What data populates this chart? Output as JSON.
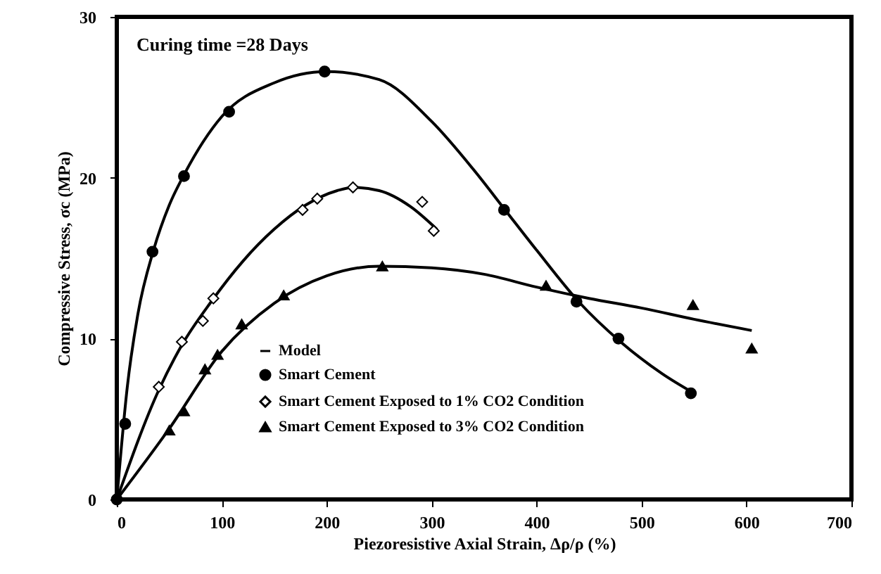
{
  "chart_data": {
    "type": "scatter",
    "xlabel": "Piezoresistive Axial Strain, Δρ/ρ (%)",
    "ylabel": "Compressive Stress, σc (MPa)",
    "annotations": [
      "Curing time =28 Days"
    ],
    "xlim": [
      0,
      700
    ],
    "xticks": [
      0,
      100,
      200,
      300,
      400,
      500,
      600,
      700
    ],
    "ylim": [
      0,
      30
    ],
    "yticks": [
      0,
      10,
      20,
      30
    ],
    "grid": false,
    "legend": "bottom",
    "series": [
      {
        "name": "Model",
        "type": "line",
        "color": "#000000",
        "line_style": "solid",
        "x": [
          0,
          10,
          20,
          35,
          50,
          65,
          100,
          150,
          200,
          250,
          300,
          340,
          370,
          400,
          440,
          480,
          520,
          550
        ],
        "values": [
          0,
          7,
          11.5,
          15.5,
          18.3,
          20.3,
          23.8,
          25.9,
          26.6,
          26.1,
          23.5,
          20.5,
          18,
          15.5,
          12.3,
          9.8,
          7.8,
          6.6
        ]
      },
      {
        "type": "line",
        "color": "#000000",
        "line_style": "solid",
        "x": [
          0,
          40,
          62,
          90,
          120,
          150,
          180,
          210,
          225,
          250,
          280,
          305
        ],
        "values": [
          0,
          6.8,
          9.6,
          12.3,
          14.8,
          16.8,
          18.3,
          19.2,
          19.4,
          19.2,
          18.2,
          16.8
        ]
      },
      {
        "type": "line",
        "color": "#000000",
        "line_style": "solid",
        "x": [
          0,
          50,
          100,
          150,
          200,
          250,
          300,
          350,
          400,
          450,
          500,
          550,
          605
        ],
        "values": [
          0,
          4.4,
          9.2,
          12.2,
          13.9,
          14.5,
          14.4,
          14,
          13.2,
          12.5,
          11.9,
          11.2,
          10.5
        ]
      },
      {
        "name": "Smart Cement",
        "marker": "circle",
        "color": "#000000",
        "x": [
          0,
          8,
          34,
          64,
          107,
          198,
          369,
          438,
          478,
          547
        ],
        "values": [
          0,
          4.7,
          15.4,
          20.1,
          24.1,
          26.6,
          18.0,
          12.3,
          10.0,
          6.6
        ]
      },
      {
        "name": "Smart Cement Exposed to 1% CO2 Condition",
        "marker": "diamond",
        "color": "#000000",
        "x": [
          40,
          62,
          82,
          92,
          177,
          191,
          225,
          291,
          302
        ],
        "values": [
          7.0,
          9.8,
          11.1,
          12.5,
          18.0,
          18.7,
          19.4,
          18.5,
          16.7
        ]
      },
      {
        "name": "Smart Cement Exposed to 3% CO2 Condition",
        "marker": "triangle",
        "color": "#000000",
        "x": [
          50,
          64,
          84,
          96,
          119,
          159,
          253,
          409,
          549,
          605
        ],
        "values": [
          4.3,
          5.5,
          8.1,
          9.0,
          10.9,
          12.7,
          14.5,
          13.3,
          12.1,
          9.4
        ]
      }
    ]
  }
}
